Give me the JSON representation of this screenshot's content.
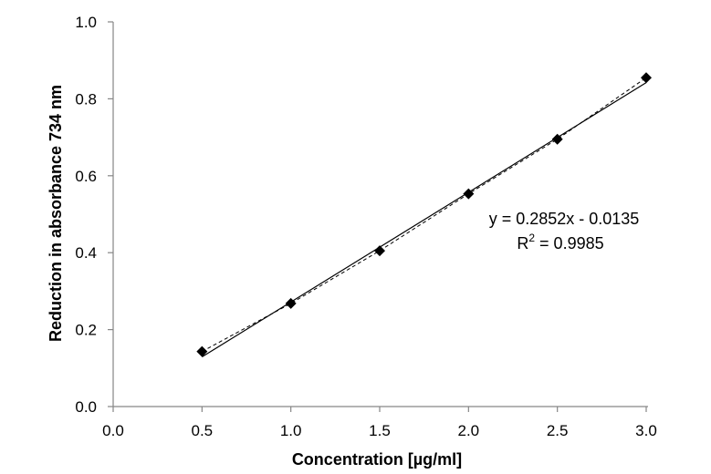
{
  "chart_data": {
    "type": "scatter",
    "title": "",
    "xlabel": "Concentration [µg/ml]",
    "ylabel": "Reduction in absorbance 734 nm",
    "xlim": [
      0.0,
      3.0
    ],
    "ylim": [
      0.0,
      1.0
    ],
    "x_ticks": [
      "0.0",
      "0.5",
      "1.0",
      "1.5",
      "2.0",
      "2.5",
      "3.0"
    ],
    "y_ticks": [
      "0.0",
      "0.2",
      "0.4",
      "0.6",
      "0.8",
      "1.0"
    ],
    "grid": false,
    "legend": "none",
    "series": [
      {
        "marker": "diamond",
        "color": "#000000",
        "x": [
          0.5,
          1.0,
          1.5,
          2.0,
          2.5,
          3.0
        ],
        "y": [
          0.143,
          0.268,
          0.405,
          0.553,
          0.695,
          0.855
        ],
        "connector": "dashed"
      }
    ],
    "trendline": {
      "kind": "linear",
      "slope": 0.2852,
      "intercept": -0.0135,
      "style": "solid",
      "x_range": [
        0.5,
        3.0
      ]
    },
    "annotations": {
      "equation": "y = 0.2852x - 0.0135",
      "r2_prefix": "R",
      "r2_sup": "2",
      "r2_suffix": " = 0.9985"
    }
  }
}
